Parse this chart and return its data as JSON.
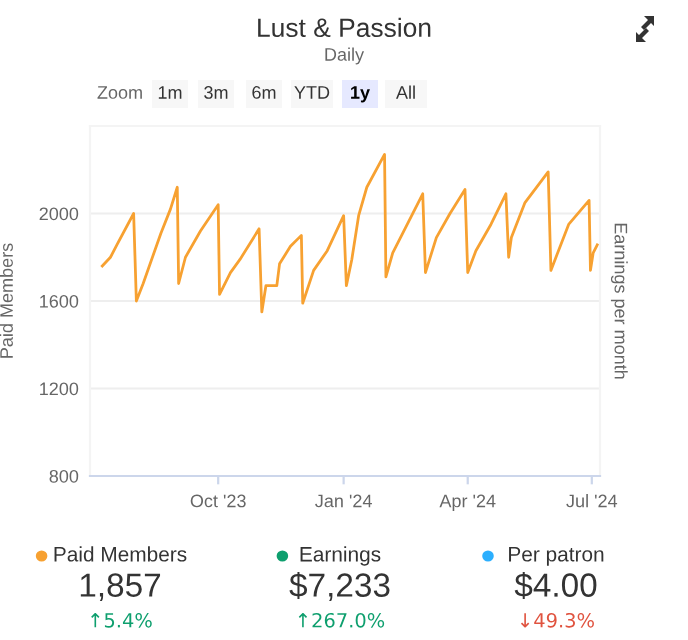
{
  "chart_data": [
    {
      "type": "line",
      "title": "Lust & Passion",
      "subtitle": "Daily",
      "ylabel": "Paid Members",
      "y2label": "Earnings per month",
      "annotations": [
        "Zoom",
        "1m",
        "3m",
        "6m",
        "YTD",
        "1y",
        "All"
      ],
      "x": [
        "2023-07-08",
        "2023-07-14",
        "2023-07-19",
        "2023-07-31",
        "2023-08-02",
        "2023-08-07",
        "2023-08-20",
        "2023-08-27",
        "2023-09-01",
        "2023-09-02",
        "2023-09-07",
        "2023-09-18",
        "2023-10-01",
        "2023-10-02",
        "2023-10-10",
        "2023-10-17",
        "2023-10-31",
        "2023-11-02",
        "2023-11-05",
        "2023-11-13",
        "2023-11-15",
        "2023-11-23",
        "2023-12-01",
        "2023-12-02",
        "2023-12-10",
        "2023-12-20",
        "2024-01-01",
        "2024-01-03",
        "2024-01-07",
        "2024-01-12",
        "2024-01-18",
        "2024-01-31",
        "2024-02-01",
        "2024-02-06",
        "2024-02-28",
        "2024-03-01",
        "2024-03-09",
        "2024-03-19",
        "2024-03-30",
        "2024-04-01",
        "2024-04-07",
        "2024-04-18",
        "2024-04-29",
        "2024-05-01",
        "2024-05-03",
        "2024-05-13",
        "2024-05-30",
        "2024-06-01",
        "2024-06-14",
        "2024-06-29",
        "2024-06-30",
        "2024-07-02",
        "2024-07-05"
      ],
      "series": [
        {
          "color": "#f7a131",
          "values": [
            1760,
            1800,
            1860,
            2000,
            1600,
            1680,
            1910,
            2020,
            2120,
            1680,
            1800,
            1920,
            2040,
            1630,
            1730,
            1790,
            1930,
            1550,
            1670,
            1670,
            1770,
            1850,
            1900,
            1590,
            1740,
            1830,
            1990,
            1670,
            1790,
            1990,
            2120,
            2270,
            1710,
            1820,
            2090,
            1730,
            1890,
            2000,
            2110,
            1730,
            1830,
            1950,
            2090,
            1800,
            1890,
            2050,
            2190,
            1740,
            1950,
            2060,
            1740,
            1820,
            1857
          ]
        }
      ],
      "xlim": [
        "2023-06-29",
        "2024-07-07"
      ],
      "xticks": [
        {
          "value": "2023-10-01",
          "label": "Oct '23"
        },
        {
          "value": "2024-01-01",
          "label": "Jan '24"
        },
        {
          "value": "2024-04-01",
          "label": "Apr '24"
        },
        {
          "value": "2024-07-01",
          "label": "Jul '24"
        }
      ],
      "ylim": [
        800,
        2400
      ],
      "yticks": [
        800,
        1200,
        1600,
        2000,
        {
          "value": 2400,
          "label": null
        }
      ],
      "grid": "y",
      "marker": "none",
      "line_style": "solid"
    },
    {
      "type": "other",
      "colors": [
        "#f7a131",
        "#0e9f6e",
        "#2caffe"
      ],
      "annotations": [
        "Paid Members",
        "1,857",
        "↑5.4%",
        "Earnings",
        "$7,233",
        "↑267.0%",
        "Per patron",
        "$4.00",
        "↓49.3%"
      ]
    }
  ]
}
